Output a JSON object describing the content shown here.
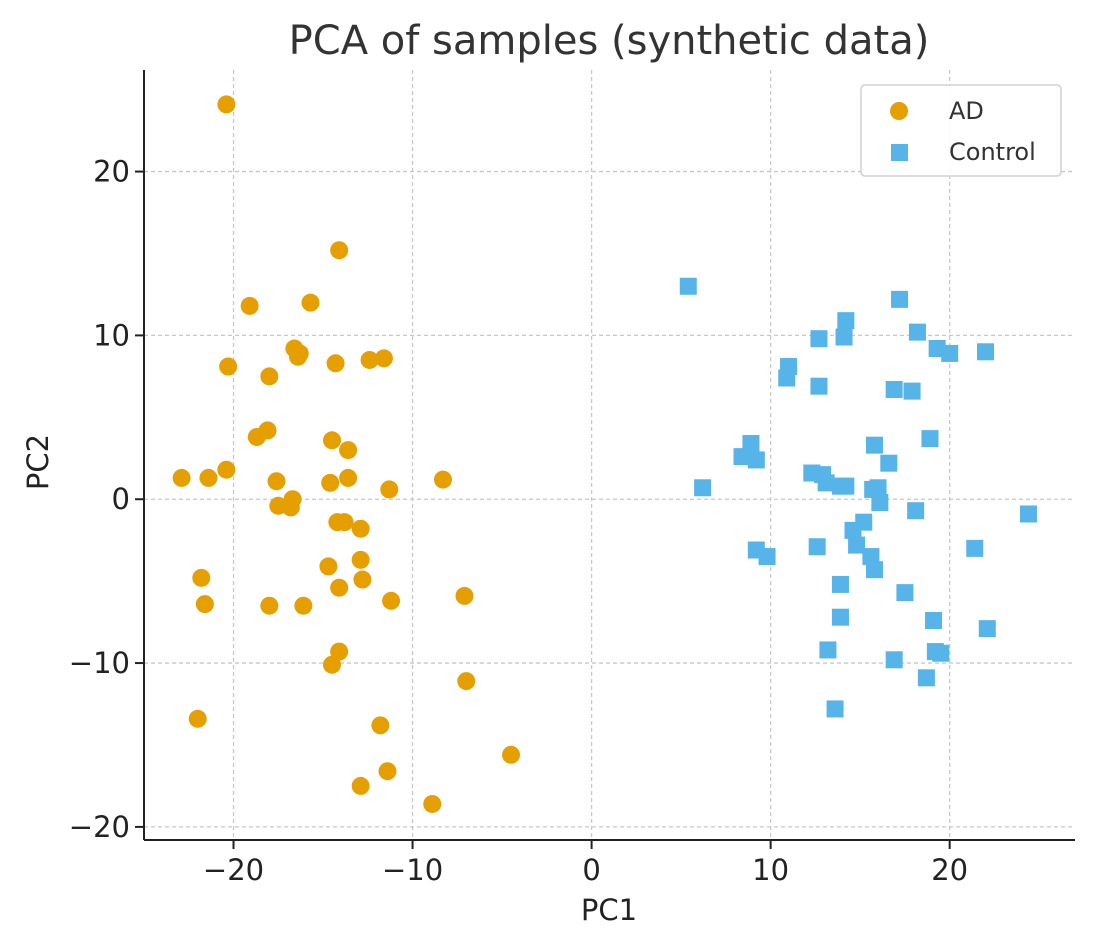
{
  "chart_data": {
    "type": "scatter",
    "title": "PCA of samples (synthetic data)",
    "xlabel": "PC1",
    "ylabel": "PC2",
    "xlim": [
      -25,
      27
    ],
    "ylim": [
      -20.8,
      26.2
    ],
    "xticks": [
      -20,
      -10,
      0,
      10,
      20
    ],
    "yticks": [
      -20,
      -10,
      0,
      10,
      20
    ],
    "xtick_labels": [
      "−20",
      "−10",
      "0",
      "10",
      "20"
    ],
    "ytick_labels": [
      "−20",
      "−10",
      "0",
      "10",
      "20"
    ],
    "grid": true,
    "legend_position": "top-right",
    "series": [
      {
        "name": "AD",
        "marker": "circle",
        "color": "#E69F00",
        "points": [
          [
            -20.4,
            24.1
          ],
          [
            -14.1,
            15.2
          ],
          [
            -19.1,
            11.8
          ],
          [
            -15.7,
            12.0
          ],
          [
            -16.6,
            9.2
          ],
          [
            -16.3,
            8.9
          ],
          [
            -16.4,
            8.7
          ],
          [
            -14.3,
            8.3
          ],
          [
            -12.4,
            8.5
          ],
          [
            -11.6,
            8.6
          ],
          [
            -20.3,
            8.1
          ],
          [
            -18.0,
            7.5
          ],
          [
            -18.1,
            4.2
          ],
          [
            -18.7,
            3.8
          ],
          [
            -14.5,
            3.6
          ],
          [
            -13.6,
            3.0
          ],
          [
            -20.4,
            1.8
          ],
          [
            -22.9,
            1.3
          ],
          [
            -21.4,
            1.3
          ],
          [
            -17.6,
            1.1
          ],
          [
            -13.6,
            1.3
          ],
          [
            -14.6,
            1.0
          ],
          [
            -11.3,
            0.6
          ],
          [
            -8.3,
            1.2
          ],
          [
            -16.7,
            0.0
          ],
          [
            -17.5,
            -0.4
          ],
          [
            -16.8,
            -0.5
          ],
          [
            -14.2,
            -1.4
          ],
          [
            -13.8,
            -1.4
          ],
          [
            -12.9,
            -1.8
          ],
          [
            -12.9,
            -3.7
          ],
          [
            -14.7,
            -4.1
          ],
          [
            -12.8,
            -4.9
          ],
          [
            -14.1,
            -5.4
          ],
          [
            -11.2,
            -6.2
          ],
          [
            -21.8,
            -4.8
          ],
          [
            -21.6,
            -6.4
          ],
          [
            -18.0,
            -6.5
          ],
          [
            -16.1,
            -6.5
          ],
          [
            -7.1,
            -5.9
          ],
          [
            -14.1,
            -9.3
          ],
          [
            -14.5,
            -10.1
          ],
          [
            -7.0,
            -11.1
          ],
          [
            -22.0,
            -13.4
          ],
          [
            -11.8,
            -13.8
          ],
          [
            -4.5,
            -15.6
          ],
          [
            -11.4,
            -16.6
          ],
          [
            -12.9,
            -17.5
          ],
          [
            -8.9,
            -18.6
          ]
        ]
      },
      {
        "name": "Control",
        "marker": "square",
        "color": "#56B4E9",
        "points": [
          [
            5.4,
            13.0
          ],
          [
            17.2,
            12.2
          ],
          [
            14.2,
            10.9
          ],
          [
            18.2,
            10.2
          ],
          [
            14.1,
            9.9
          ],
          [
            12.7,
            9.8
          ],
          [
            19.3,
            9.2
          ],
          [
            20.0,
            8.9
          ],
          [
            22.0,
            9.0
          ],
          [
            11.0,
            8.1
          ],
          [
            10.9,
            7.4
          ],
          [
            12.7,
            6.9
          ],
          [
            16.9,
            6.7
          ],
          [
            17.9,
            6.6
          ],
          [
            18.9,
            3.7
          ],
          [
            8.9,
            3.4
          ],
          [
            15.8,
            3.3
          ],
          [
            8.4,
            2.6
          ],
          [
            9.2,
            2.4
          ],
          [
            16.6,
            2.2
          ],
          [
            12.3,
            1.6
          ],
          [
            12.9,
            1.5
          ],
          [
            13.1,
            1.0
          ],
          [
            13.9,
            0.8
          ],
          [
            14.2,
            0.8
          ],
          [
            6.2,
            0.7
          ],
          [
            15.7,
            0.6
          ],
          [
            16.0,
            0.7
          ],
          [
            16.1,
            -0.2
          ],
          [
            18.1,
            -0.7
          ],
          [
            24.4,
            -0.9
          ],
          [
            14.6,
            -1.9
          ],
          [
            15.2,
            -1.4
          ],
          [
            14.8,
            -2.8
          ],
          [
            12.6,
            -2.9
          ],
          [
            9.2,
            -3.1
          ],
          [
            9.8,
            -3.5
          ],
          [
            21.4,
            -3.0
          ],
          [
            15.6,
            -3.5
          ],
          [
            15.8,
            -4.3
          ],
          [
            13.9,
            -5.2
          ],
          [
            17.5,
            -5.7
          ],
          [
            13.9,
            -7.2
          ],
          [
            19.1,
            -7.4
          ],
          [
            22.1,
            -7.9
          ],
          [
            13.2,
            -9.2
          ],
          [
            19.2,
            -9.3
          ],
          [
            19.5,
            -9.4
          ],
          [
            16.9,
            -9.8
          ],
          [
            18.7,
            -10.9
          ],
          [
            13.6,
            -12.8
          ]
        ]
      }
    ]
  }
}
